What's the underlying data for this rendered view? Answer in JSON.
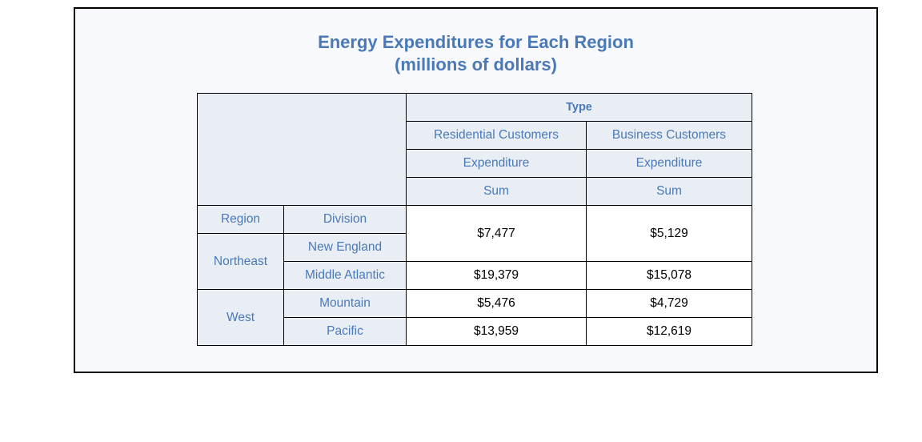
{
  "chart_data": {
    "type": "table",
    "title_line1": "Energy Expenditures for Each Region",
    "title_line2": "(millions of dollars)",
    "column_group_label": "Type",
    "columns": [
      "Residential Customers",
      "Business Customers"
    ],
    "measure_label": "Expenditure",
    "statistic_label": "Sum",
    "row_headers": [
      "Region",
      "Division"
    ],
    "rows": [
      {
        "region": "Northeast",
        "division": "New England",
        "residential": "$7,477",
        "business": "$5,129"
      },
      {
        "region": "Northeast",
        "division": "Middle Atlantic",
        "residential": "$19,379",
        "business": "$15,078"
      },
      {
        "region": "West",
        "division": "Mountain",
        "residential": "$5,476",
        "business": "$4,729"
      },
      {
        "region": "West",
        "division": "Pacific",
        "residential": "$13,959",
        "business": "$12,619"
      }
    ]
  },
  "colors": {
    "header_text": "#4a79b8",
    "header_bg": "#e9eef5",
    "frame_bg": "#f7f9fc"
  }
}
